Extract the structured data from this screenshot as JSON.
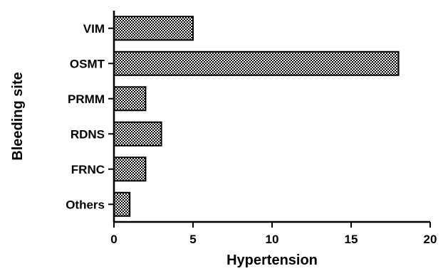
{
  "chart_data": {
    "type": "bar",
    "orientation": "horizontal",
    "categories": [
      "VIM",
      "OSMT",
      "PRMM",
      "RDNS",
      "FRNC",
      "Others"
    ],
    "values": [
      5,
      18,
      2,
      3,
      2,
      1
    ],
    "title": "",
    "xlabel": "Hypertension",
    "ylabel": "Bleeding site",
    "xlim": [
      0,
      20
    ],
    "xticks": [
      "0",
      "5",
      "10",
      "15",
      "20"
    ],
    "grid": false,
    "legend": "none",
    "bar_pattern": "checkerboard",
    "colors": {
      "bar_dark": "#000000",
      "bar_light": "#ffffff",
      "axis": "#000000"
    }
  }
}
